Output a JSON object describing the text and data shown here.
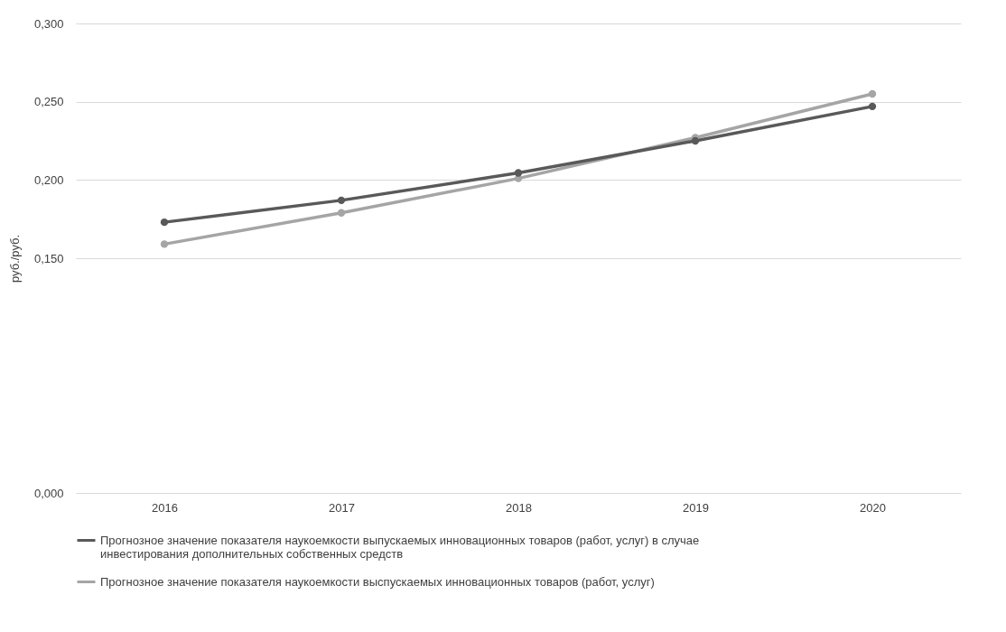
{
  "chart_data": {
    "type": "line",
    "ylabel": "руб./руб.",
    "categories": [
      "2016",
      "2017",
      "2018",
      "2019",
      "2020"
    ],
    "series": [
      {
        "name": "Прогнозное значение показателя наукоемкости выпускаемых инновационных товаров (работ, услуг) в случае инвестирования дополнительных собственных средств",
        "color": "#595959",
        "values": [
          0.173,
          0.187,
          0.2045,
          0.225,
          0.247
        ]
      },
      {
        "name": "Прогнозное значение показателя наукоемкости выспускаемых инновационных товаров (работ, услуг)",
        "color": "#a5a5a5",
        "values": [
          0.159,
          0.179,
          0.201,
          0.227,
          0.255
        ]
      }
    ],
    "ylim": [
      0,
      0.3
    ],
    "yticks": [
      {
        "value": 0,
        "label": "0,000"
      },
      {
        "value": 0.15,
        "label": "0,150"
      },
      {
        "value": 0.2,
        "label": "0,200"
      },
      {
        "value": 0.25,
        "label": "0,250"
      },
      {
        "value": 0.3,
        "label": "0,300"
      }
    ],
    "grid": "y",
    "legend": "bottom",
    "marker": "circle",
    "line_style": "solid"
  }
}
